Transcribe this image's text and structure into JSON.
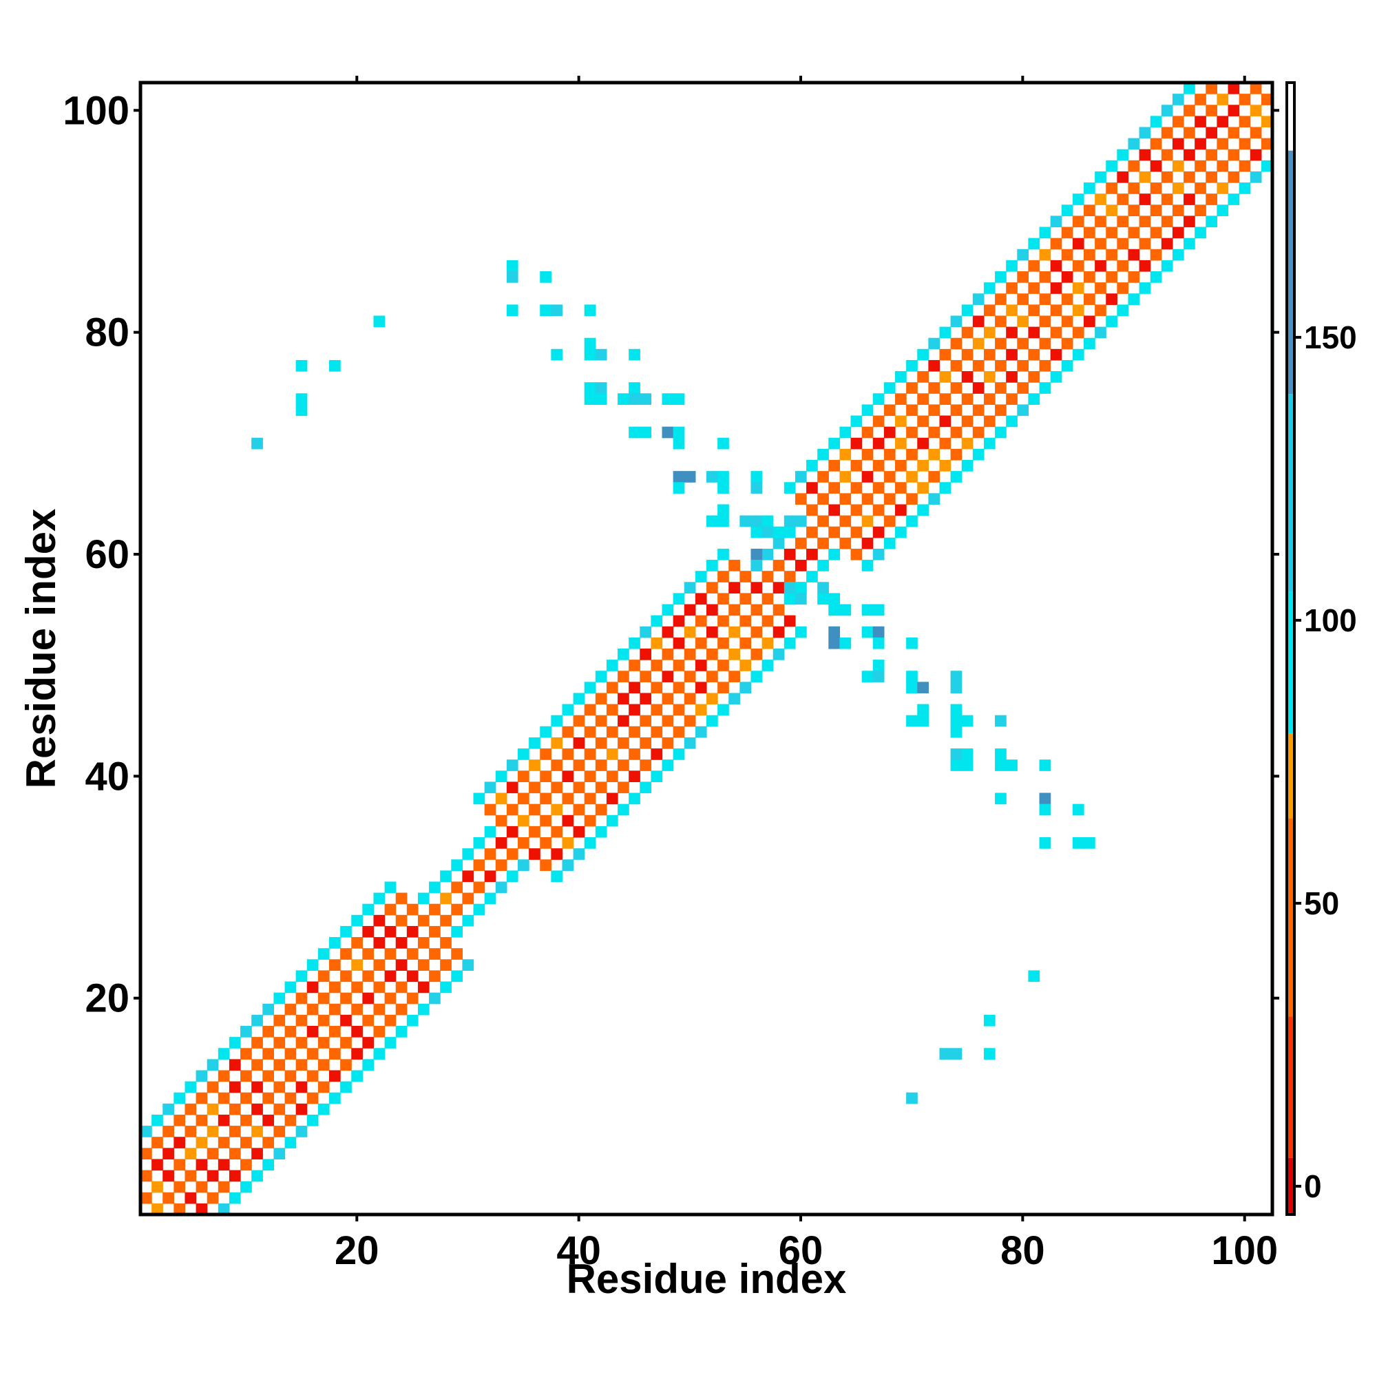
{
  "chart_data": {
    "type": "heatmap",
    "title": "",
    "xlabel": "Residue index",
    "ylabel": "Residue index",
    "xlim": [
      1,
      102
    ],
    "ylim": [
      1,
      102
    ],
    "xticks": [
      20,
      40,
      60,
      80,
      100
    ],
    "yticks": [
      20,
      40,
      60,
      80,
      100
    ],
    "colorbar": {
      "ticks": [
        0,
        50,
        100,
        150
      ],
      "range": [
        -5,
        195
      ],
      "stops": [
        {
          "from": -5,
          "to": 5,
          "color": "#e00000"
        },
        {
          "from": 5,
          "to": 30,
          "color": "#ff3300"
        },
        {
          "from": 30,
          "to": 65,
          "color": "#ff6600"
        },
        {
          "from": 65,
          "to": 80,
          "color": "#ff9900"
        },
        {
          "from": 80,
          "to": 105,
          "color": "#00e5ee"
        },
        {
          "from": 105,
          "to": 140,
          "color": "#22c8e6"
        },
        {
          "from": 140,
          "to": 183,
          "color": "#4a90c2"
        },
        {
          "from": 183,
          "to": 195,
          "color": "#ffffff"
        }
      ]
    },
    "palette": {
      "red": "#ee1100",
      "orange": "#ff6600",
      "amber": "#ff9900",
      "cyan": "#00e5ee",
      "cyan2": "#22d0e8",
      "steel": "#3f8fc0"
    },
    "band_segments": [
      {
        "from": 1,
        "to": 27,
        "width": 7
      },
      {
        "from": 27,
        "to": 34,
        "width": 3
      },
      {
        "from": 34,
        "to": 57,
        "width": 7
      },
      {
        "from": 57,
        "to": 62,
        "width": 3
      },
      {
        "from": 62,
        "to": 102,
        "width": 7
      }
    ],
    "offdiag_cells": [
      [
        34,
        86
      ],
      [
        34,
        85
      ],
      [
        37,
        85
      ],
      [
        34,
        82
      ],
      [
        37,
        82
      ],
      [
        38,
        82
      ],
      [
        41,
        82
      ],
      [
        38,
        78
      ],
      [
        41,
        79
      ],
      [
        41,
        78
      ],
      [
        42,
        78
      ],
      [
        45,
        78
      ],
      [
        15,
        77
      ],
      [
        18,
        77
      ],
      [
        15,
        74
      ],
      [
        15,
        73
      ],
      [
        11,
        70
      ],
      [
        22,
        81
      ],
      [
        41,
        75
      ],
      [
        42,
        75
      ],
      [
        41,
        74
      ],
      [
        42,
        74
      ],
      [
        44,
        74
      ],
      [
        45,
        75
      ],
      [
        45,
        74
      ],
      [
        46,
        74
      ],
      [
        48,
        74
      ],
      [
        49,
        74
      ],
      [
        45,
        71
      ],
      [
        46,
        71
      ],
      [
        48,
        71
      ],
      [
        49,
        71
      ],
      [
        49,
        70
      ],
      [
        53,
        70
      ],
      [
        49,
        67
      ],
      [
        49,
        66
      ],
      [
        50,
        67
      ],
      [
        52,
        67
      ],
      [
        53,
        67
      ],
      [
        53,
        66
      ],
      [
        56,
        67
      ],
      [
        56,
        66
      ],
      [
        53,
        64
      ],
      [
        52,
        63
      ],
      [
        53,
        63
      ],
      [
        55,
        63
      ],
      [
        56,
        63
      ],
      [
        56,
        62
      ],
      [
        57,
        63
      ],
      [
        57,
        62
      ],
      [
        58,
        62
      ],
      [
        59,
        63
      ],
      [
        59,
        62
      ],
      [
        56,
        60
      ],
      [
        56,
        59
      ],
      [
        59,
        57
      ],
      [
        60,
        57
      ],
      [
        59,
        56
      ],
      [
        60,
        56
      ],
      [
        62,
        57
      ],
      [
        62,
        56
      ],
      [
        63,
        56
      ],
      [
        63,
        55
      ],
      [
        64,
        55
      ],
      [
        66,
        55
      ],
      [
        67,
        55
      ],
      [
        63,
        52
      ],
      [
        64,
        52
      ],
      [
        63,
        53
      ],
      [
        66,
        53
      ],
      [
        67,
        53
      ],
      [
        67,
        52
      ],
      [
        67,
        50
      ],
      [
        66,
        49
      ],
      [
        67,
        49
      ],
      [
        70,
        52
      ],
      [
        70,
        49
      ],
      [
        70,
        48
      ],
      [
        71,
        48
      ],
      [
        71,
        46
      ],
      [
        70,
        45
      ],
      [
        71,
        45
      ],
      [
        74,
        49
      ],
      [
        74,
        48
      ],
      [
        74,
        46
      ],
      [
        74,
        45
      ],
      [
        75,
        45
      ],
      [
        74,
        44
      ],
      [
        78,
        45
      ],
      [
        74,
        42
      ],
      [
        74,
        41
      ],
      [
        75,
        42
      ],
      [
        75,
        41
      ],
      [
        78,
        42
      ],
      [
        78,
        41
      ],
      [
        79,
        41
      ],
      [
        82,
        41
      ],
      [
        78,
        38
      ],
      [
        82,
        38
      ],
      [
        82,
        37
      ],
      [
        85,
        37
      ],
      [
        82,
        34
      ],
      [
        85,
        34
      ],
      [
        86,
        34
      ],
      [
        81,
        22
      ],
      [
        77,
        18
      ],
      [
        73,
        15
      ],
      [
        74,
        15
      ],
      [
        77,
        15
      ],
      [
        70,
        11
      ]
    ]
  }
}
